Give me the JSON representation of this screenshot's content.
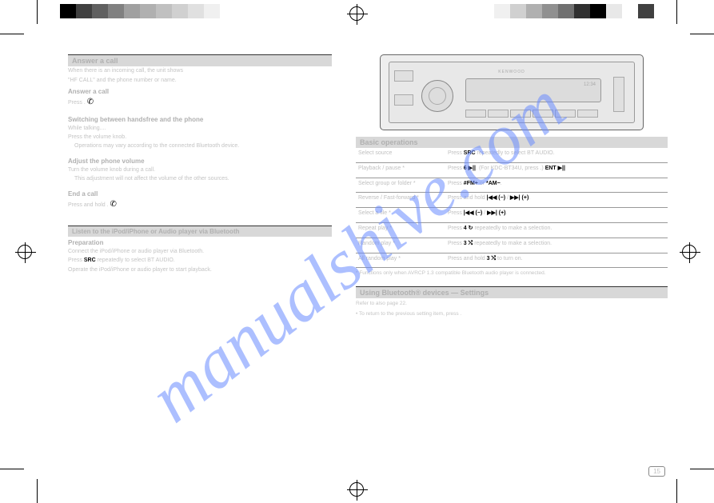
{
  "print_marks": {
    "color_bar_left": [
      "#000000",
      "#404040",
      "#606060",
      "#808080",
      "#a0a0a0",
      "#b0b0b0",
      "#c0c0c0",
      "#d0d0d0",
      "#e0e0e0",
      "#f0f0f0"
    ],
    "color_bar_right": [
      "#f0f0f0",
      "#d0d0d0",
      "#b0b0b0",
      "#909090",
      "#707070",
      "#303030",
      "#000000",
      "#e8e8e8",
      "#ffffff",
      "#404040"
    ]
  },
  "watermark_text": "manualshive.com",
  "page_number": "15",
  "left": {
    "section_title": "Answer a call",
    "intro_line1": "When there is an incoming call, the unit shows",
    "intro_line2": "\"HF CALL\" and the phone number or name.",
    "answer_hdr": "Answer a call",
    "answer_body": "Press .",
    "answer_icon": "phone-icon",
    "switch_hdr": "Switching between handsfree and the phone",
    "switch_line1": "While talking....",
    "switch_line2": "Press the volume knob.",
    "note": "Operations may vary according to the connected Bluetooth device.",
    "adjust_hdr": "Adjust the phone volume",
    "adjust_line1": "Turn the volume knob during a call.",
    "adjust_line2": "This adjustment will not affect the volume of the other sources.",
    "end_hdr": "End a call",
    "end_body": "Press and hold .",
    "sidebar_title": "Listen to the iPod/iPhone or Audio player via Bluetooth",
    "preparation_hdr": "Preparation",
    "src_label": " SRC",
    "prep1": "Connect the iPod/iPhone or audio player via Bluetooth.",
    "prep2": "Press  repeatedly to select BT AUDIO.",
    "prep3": "Operate the iPod/iPhone or audio player to start playback."
  },
  "right": {
    "device_brand": "KENWOOD",
    "device_clock": "12:34",
    "ops_title": "Basic operations",
    "row1_label": "Select source",
    "row1_action_a": "Press ",
    "row1_src": " SRC",
    "row1_action_b": " repeatedly to select BT AUDIO.",
    "row2_label": "Playback / pause *",
    "row2_action_a": "Press ",
    "row2_btn_a": "6 ▶||",
    "row2_ent": "ENT ▶||",
    "row2_action_b": ".  (For KDC-BT34U, press  .)",
    "row3_label": "Select group or folder *",
    "row3_action": "Press ",
    "row3_fm": "#FM+",
    "row3_am": "*AM−",
    "row3_or": " or ",
    "row4_label": "Reverse / Fast-forward *",
    "row4_action": "Press and hold ",
    "row4_seek": "|◀◀ (−)",
    "row4_seek2": "▶▶| (+)",
    "row5_label": "Select a file *",
    "row5_action": "Press ",
    "row5_seek": "|◀◀ (−)",
    "row5_seek2": "▶▶| (+)",
    "row6_label": "Repeat play *",
    "row6_action": "Press ",
    "row6_btn": "4 ↻",
    "row6_tail": " repeatedly to make a selection.",
    "row7_label": "Random play *",
    "row7_action": "Press ",
    "row7_btn": "3 ⤭",
    "row7_tail": " repeatedly to make a selection.",
    "row8_label": "All random play *",
    "row8_action": "Press and hold ",
    "row8_btn": "3 ⤭",
    "row8_tail": " to turn on.",
    "footnote": "*  Functions only when AVRCP 1.3 compatible Bluetooth audio player is connected.",
    "settings_title": "Using Bluetooth® devices — Settings",
    "settings_line1": "Refer to also page 22.",
    "settings_line2": "• To return to the previous setting item, press ."
  },
  "colors": {
    "text_faded": "#c0c0c0",
    "black": "#000000",
    "section_bg": "#d8d8d8",
    "watermark": "#6a8cff"
  }
}
